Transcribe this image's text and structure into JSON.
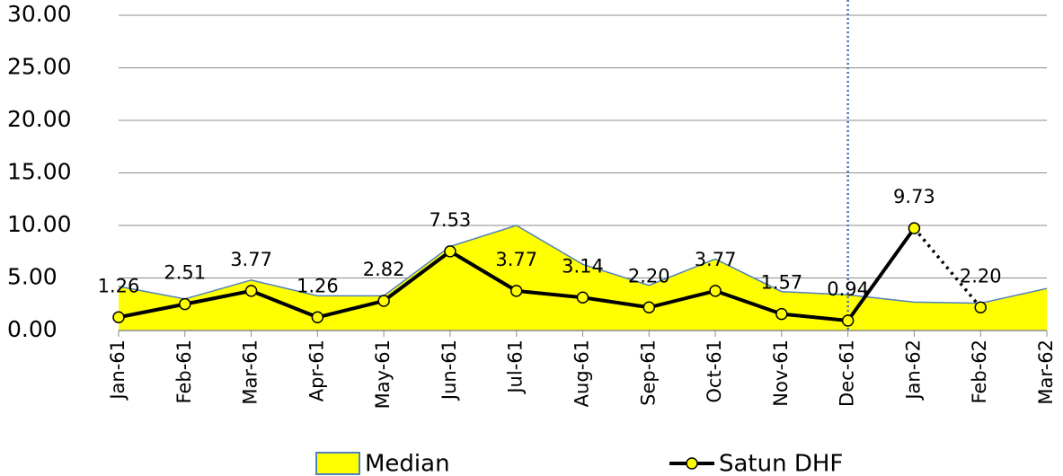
{
  "chart_data": {
    "type": "line",
    "categories": [
      "Jan-61",
      "Feb-61",
      "Mar-61",
      "Apr-61",
      "May-61",
      "Jun-61",
      "Jul-61",
      "Aug-61",
      "Sep-61",
      "Oct-61",
      "Nov-61",
      "Dec-61",
      "Jan-62",
      "Feb-62",
      "Mar-62"
    ],
    "series": [
      {
        "name": "Median",
        "color": "#ffff00",
        "kind": "area",
        "values": [
          4.2,
          3.0,
          4.8,
          3.3,
          3.3,
          8.0,
          10.0,
          6.3,
          4.3,
          6.8,
          3.7,
          3.4,
          2.7,
          2.6,
          4.0
        ]
      },
      {
        "name": "Satun  DHF",
        "color": "#000000",
        "kind": "line",
        "dotted_segments": [
          12
        ],
        "values": [
          1.26,
          2.51,
          3.77,
          1.26,
          2.82,
          7.53,
          3.77,
          3.14,
          2.2,
          3.77,
          1.57,
          0.94,
          9.73,
          2.2,
          null
        ],
        "value_labels": [
          "1.26",
          "2.51",
          "3.77",
          "1.26",
          "2.82",
          "7.53",
          "3.77",
          "3.14",
          "2.20",
          "3.77",
          "1.57",
          "0.94",
          "9.73",
          "2.20",
          null
        ]
      }
    ],
    "ylim": [
      0,
      30
    ],
    "yticks": [
      {
        "value": 0,
        "label": "0.00"
      },
      {
        "value": 5,
        "label": "5.00"
      },
      {
        "value": 10,
        "label": "10.00"
      },
      {
        "value": 15,
        "label": "15.00"
      },
      {
        "value": 20,
        "label": "20.00"
      },
      {
        "value": 25,
        "label": "25.00"
      },
      {
        "value": 30,
        "label": "30.00"
      }
    ],
    "grid": true,
    "vline_category": 11,
    "legend": "bottom"
  }
}
